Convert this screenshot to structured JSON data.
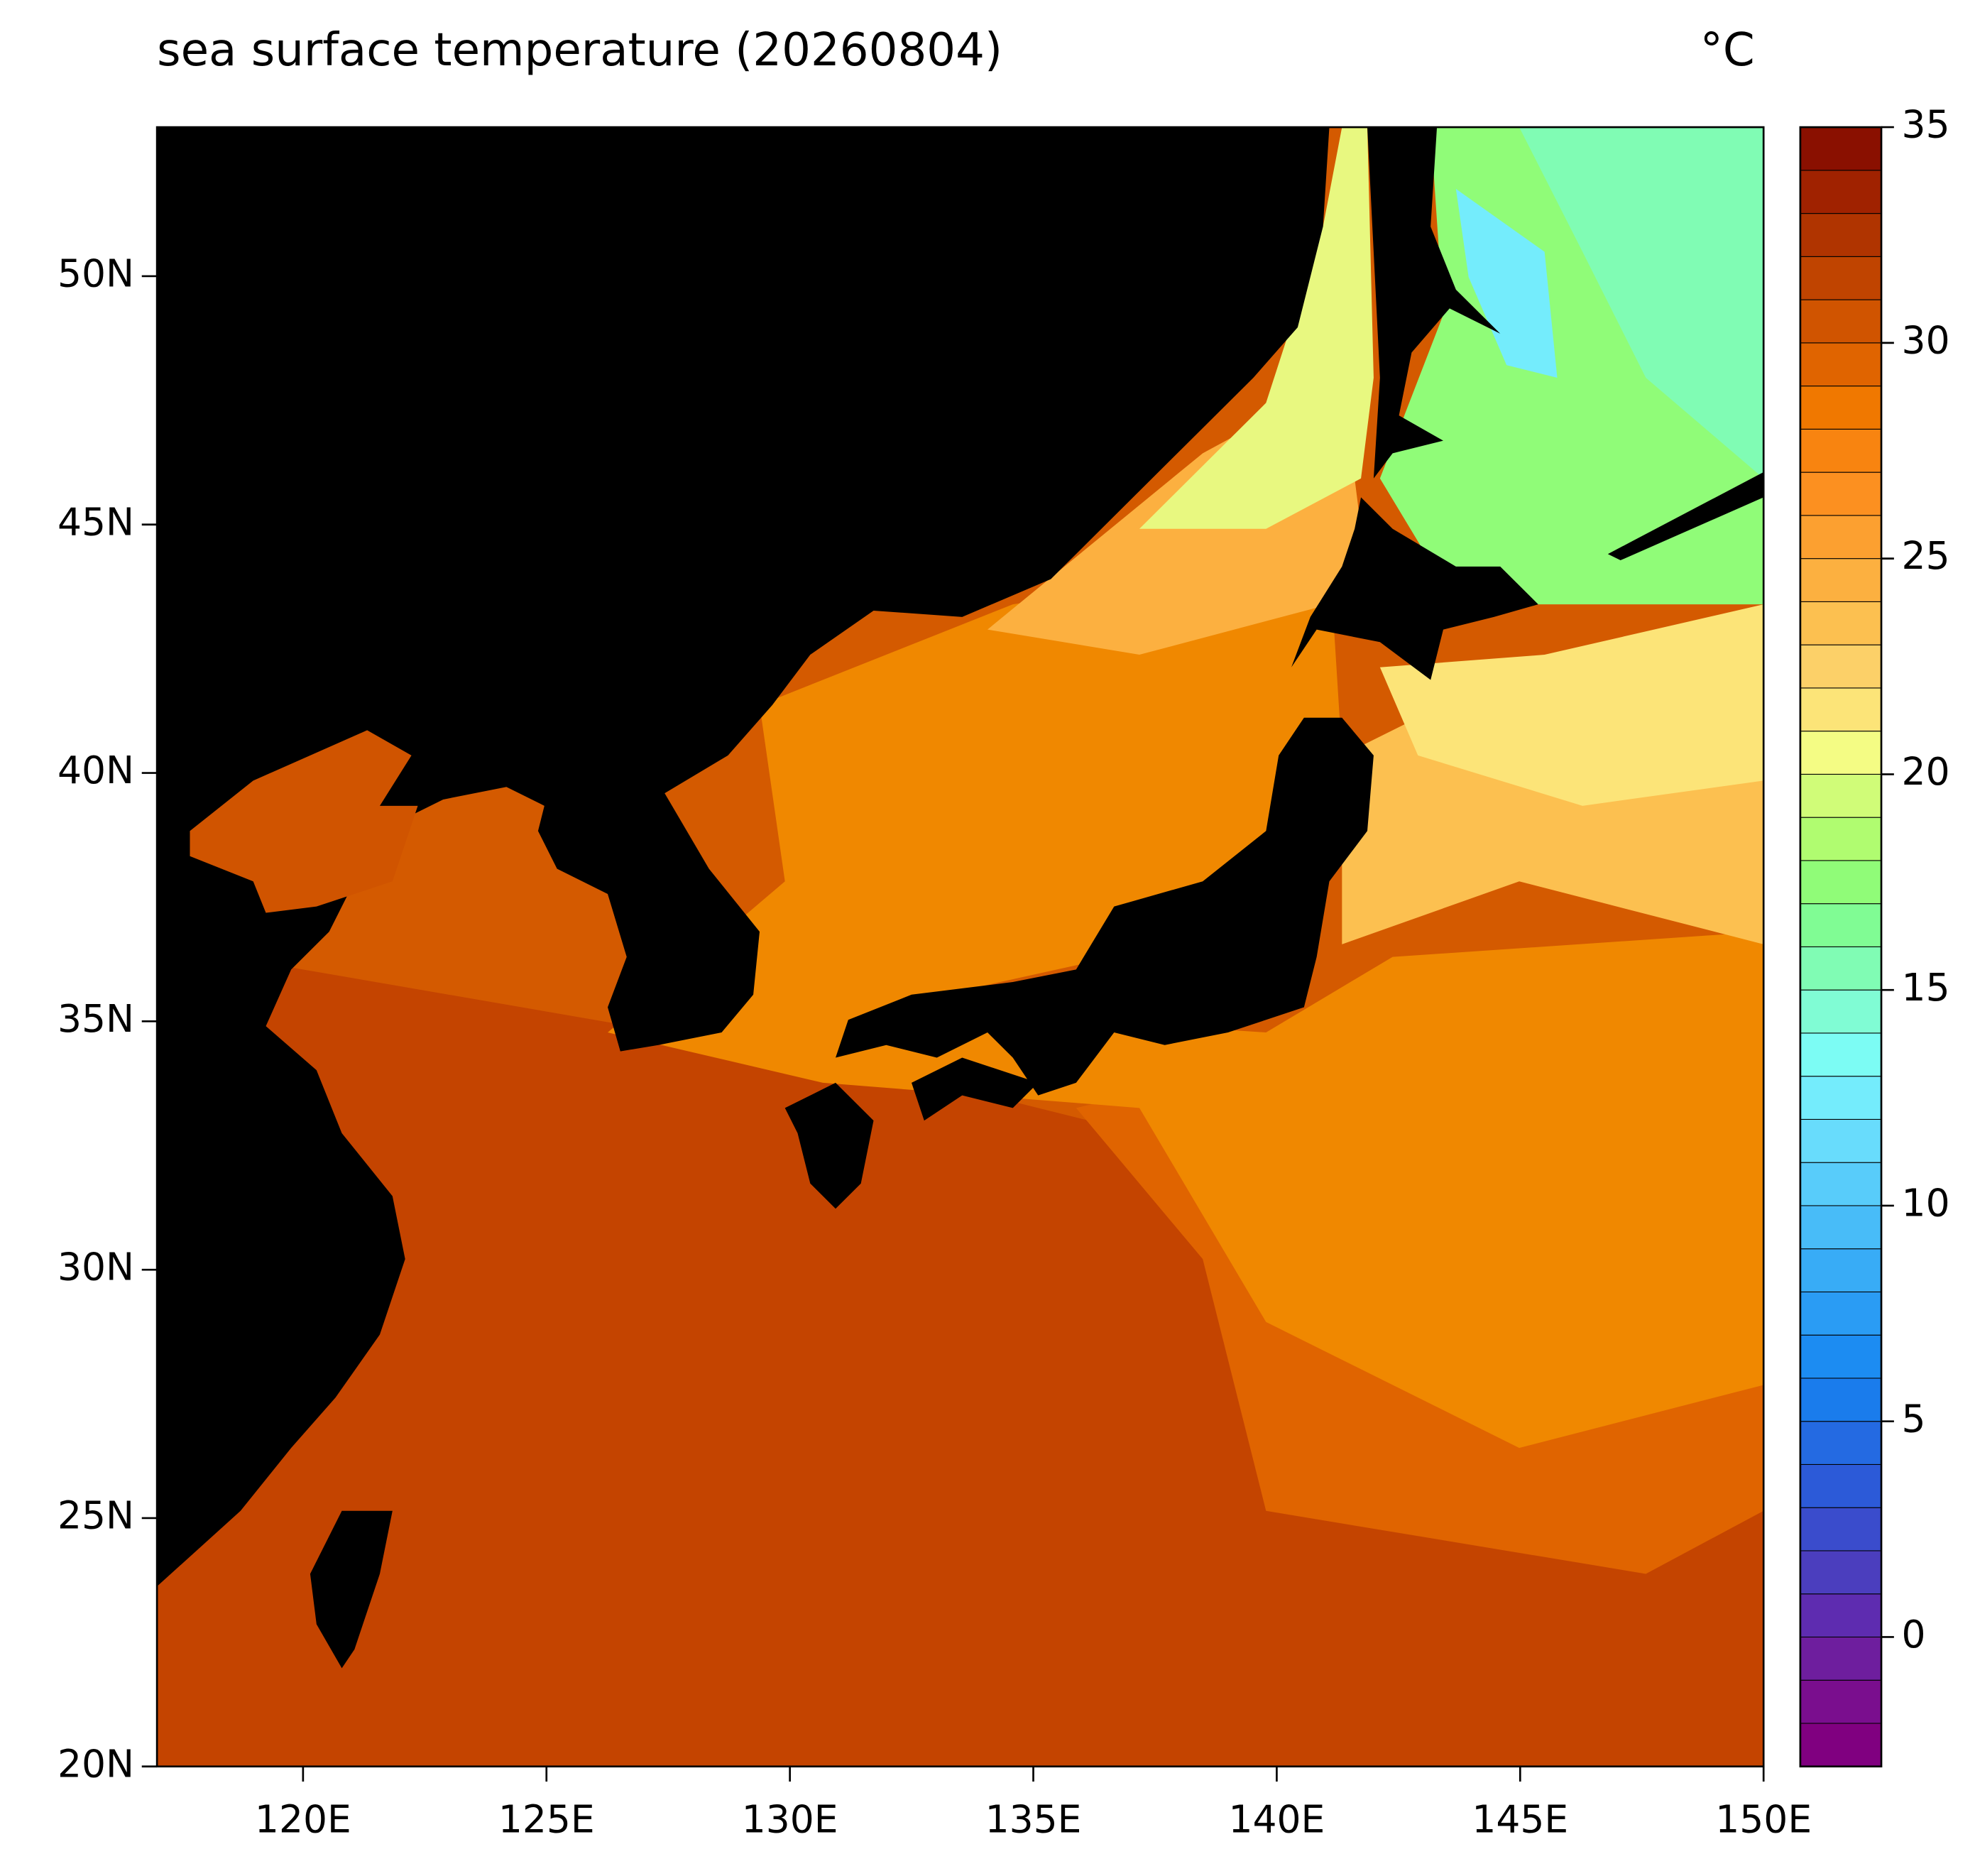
{
  "chart_data": {
    "type": "map",
    "title": "sea surface temperature (20260804)",
    "unit": "°C",
    "xlim": [
      117,
      150
    ],
    "ylim": [
      20,
      53
    ],
    "xticks": [
      {
        "value": 120,
        "label": "120E"
      },
      {
        "value": 125,
        "label": "125E"
      },
      {
        "value": 130,
        "label": "130E"
      },
      {
        "value": 135,
        "label": "135E"
      },
      {
        "value": 140,
        "label": "140E"
      },
      {
        "value": 145,
        "label": "145E"
      },
      {
        "value": 150,
        "label": "150E"
      }
    ],
    "yticks": [
      {
        "value": 20,
        "label": "20N"
      },
      {
        "value": 25,
        "label": "25N"
      },
      {
        "value": 30,
        "label": "30N"
      },
      {
        "value": 35,
        "label": "35N"
      },
      {
        "value": 40,
        "label": "40N"
      },
      {
        "value": 45,
        "label": "45N"
      },
      {
        "value": 50,
        "label": "50N"
      }
    ],
    "colorbar": {
      "lim": [
        -3,
        35
      ],
      "ticks": [
        0,
        5,
        10,
        15,
        20,
        25,
        30,
        35
      ],
      "colors": [
        "#800080",
        "#7a0e8e",
        "#6e1e9e",
        "#5e2cb0",
        "#4b3ebe",
        "#3a4ccc",
        "#2c5ad8",
        "#246ae2",
        "#1a7cec",
        "#1c8cf2",
        "#2a9cf4",
        "#38acf6",
        "#48bcf8",
        "#58ccfa",
        "#68dcfc",
        "#74ecfc",
        "#7cfcf4",
        "#80fcd4",
        "#80fcb4",
        "#80fc94",
        "#90fc78",
        "#b0fc70",
        "#d0fc78",
        "#f4fc84",
        "#fce478",
        "#fcd068",
        "#fcc050",
        "#fcb040",
        "#fca030",
        "#fc9020",
        "#f88410",
        "#f07800",
        "#e06400",
        "#d05400",
        "#c04400",
        "#b03400",
        "#a02200",
        "#8a1000"
      ]
    }
  }
}
